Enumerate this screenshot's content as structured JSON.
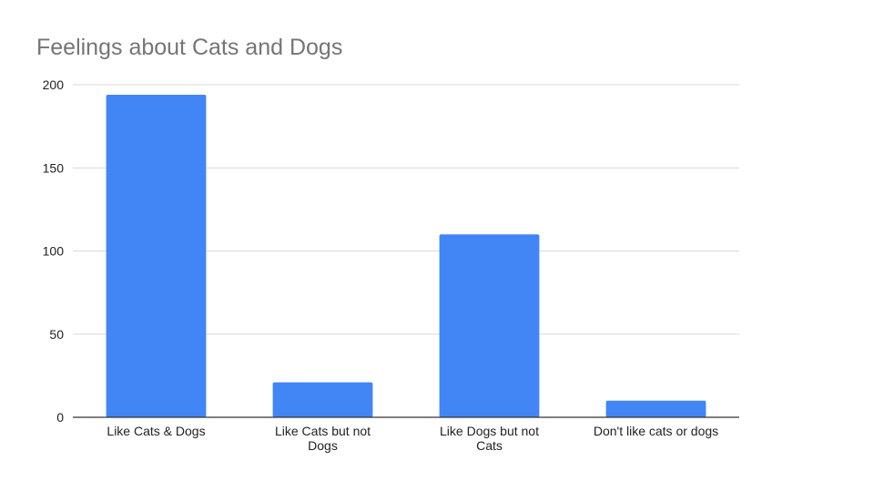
{
  "chart_data": {
    "type": "bar",
    "title": "Feelings about Cats and Dogs",
    "categories": [
      "Like Cats & Dogs",
      "Like Cats but not Dogs",
      "Like Dogs but not Cats",
      "Don't like cats or dogs"
    ],
    "category_label_lines": [
      [
        "Like Cats & Dogs"
      ],
      [
        "Like Cats but not",
        "Dogs"
      ],
      [
        "Like Dogs but not",
        "Cats"
      ],
      [
        "Don't like cats or dogs"
      ]
    ],
    "values": [
      194,
      21,
      110,
      10
    ],
    "ylim": [
      0,
      200
    ],
    "yticks": [
      0,
      50,
      100,
      150,
      200
    ],
    "xlabel": "",
    "ylabel": "",
    "grid": true,
    "legend": "none",
    "bar_color": "#4285f4",
    "grid_color": "#d9d9d9",
    "axis_color": "#333333"
  }
}
